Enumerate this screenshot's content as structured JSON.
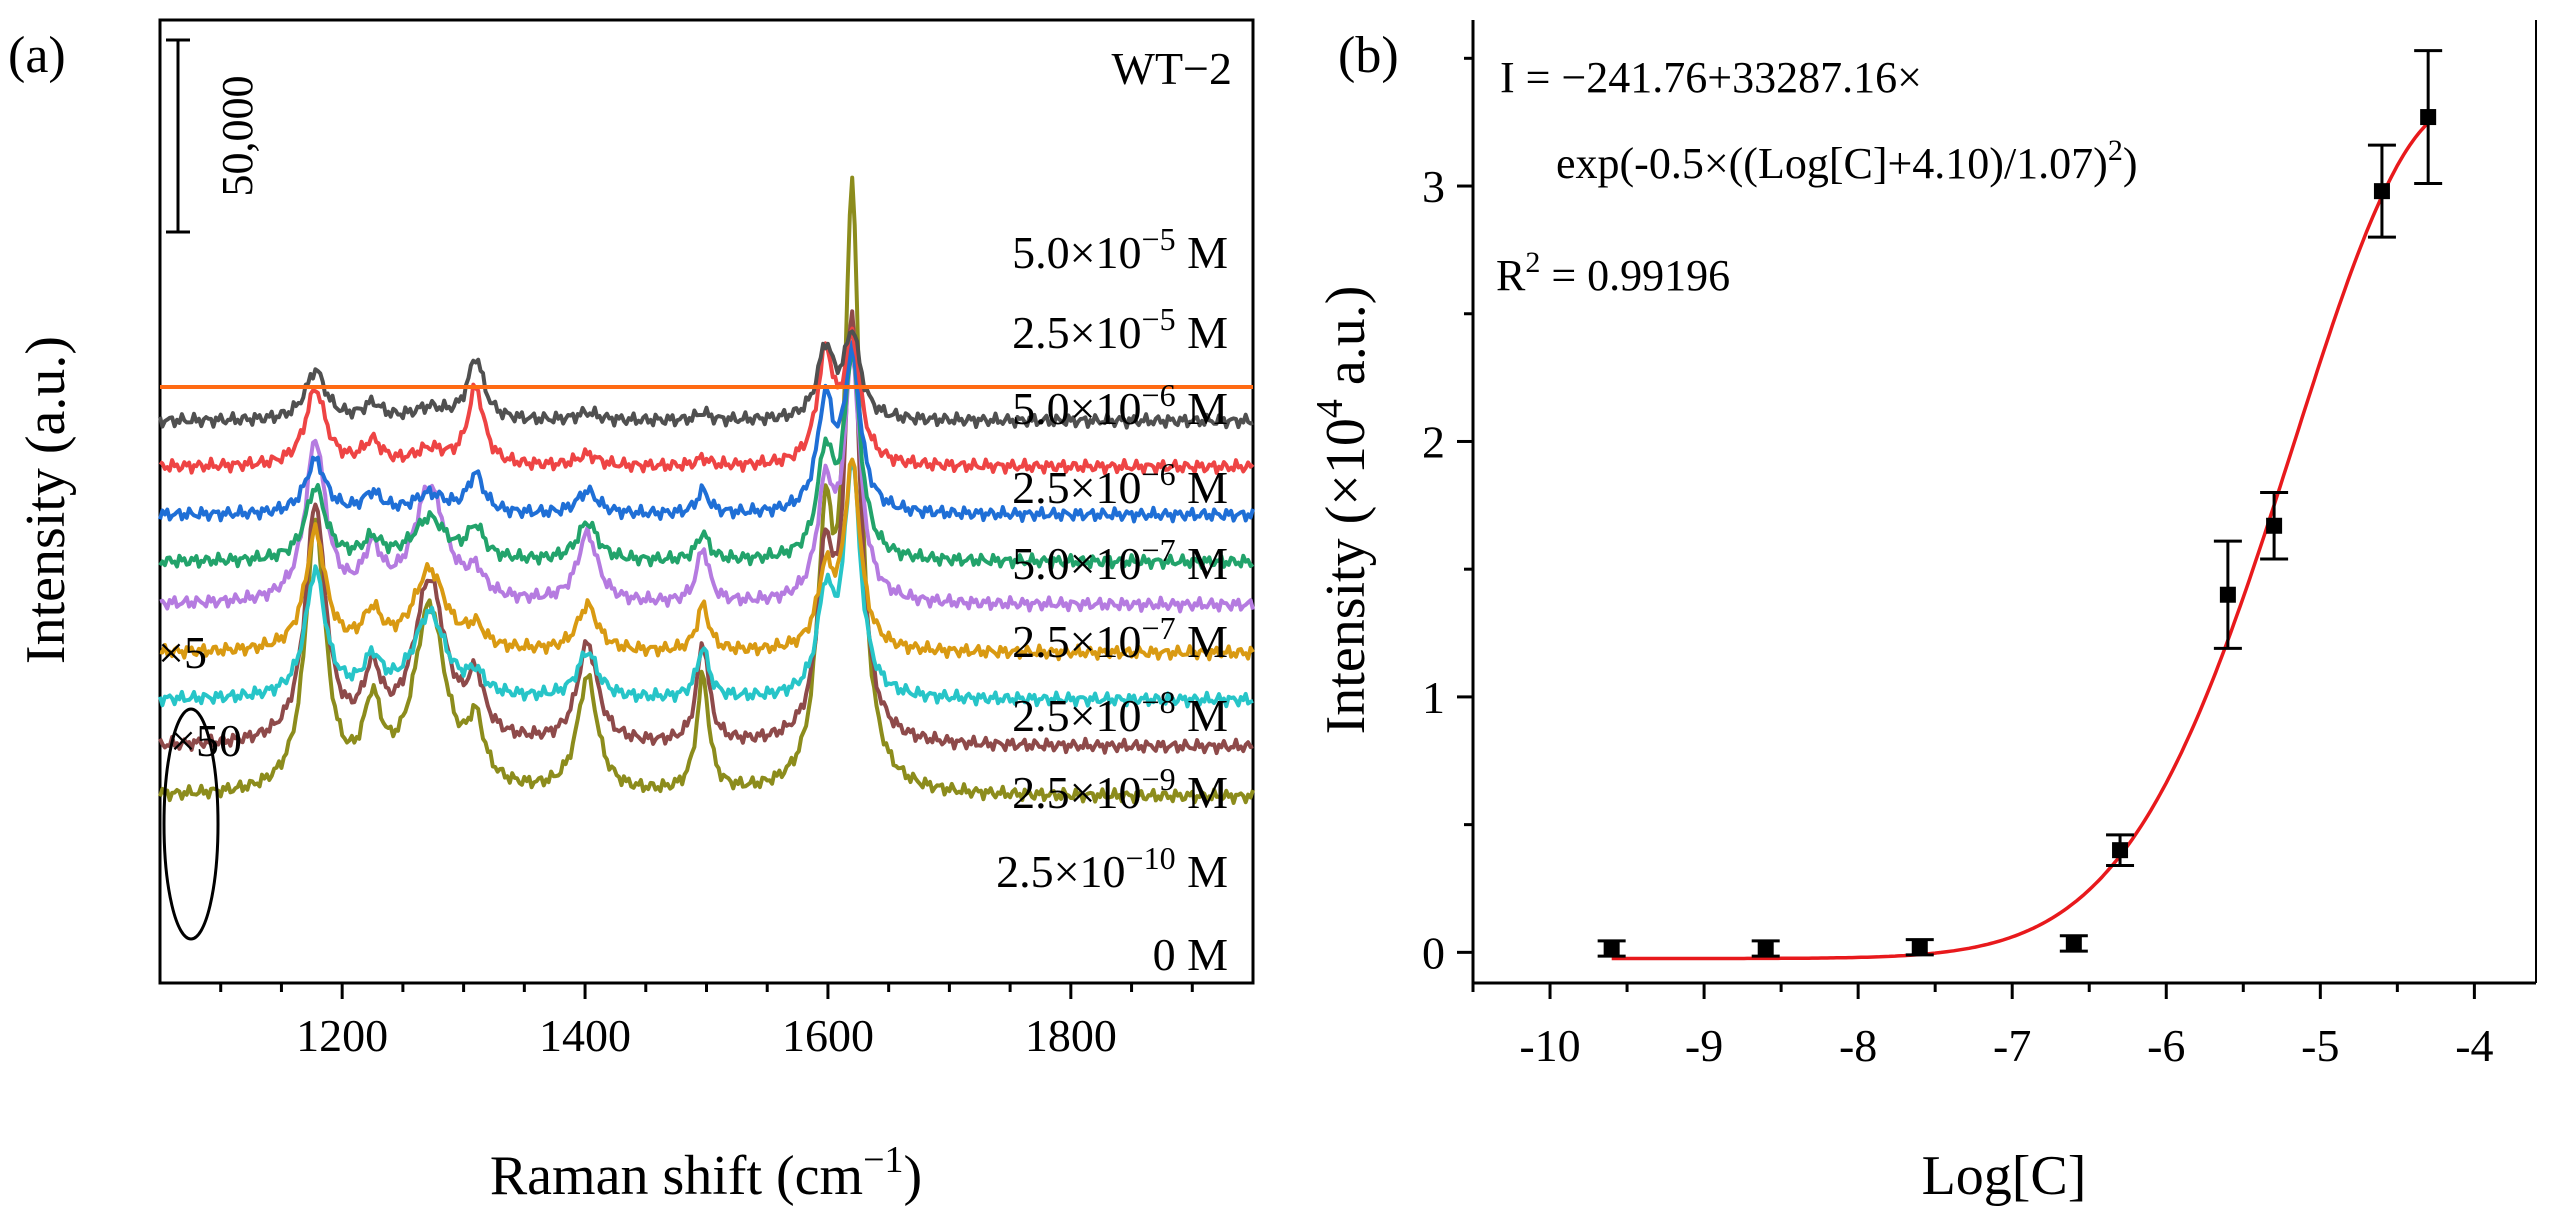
{
  "chart_data": [
    {
      "panel": "(a)",
      "type": "line",
      "title": "",
      "sample_label": "WT−2",
      "xlabel": "Raman shift (cm",
      "xlabel_sup": "−1",
      "xlabel_end": ")",
      "ylabel": "Intensity (a.u.)",
      "xlim": [
        1050,
        1950
      ],
      "xticks": [
        "1200",
        "1400",
        "1600",
        "1800"
      ],
      "xtick_values": [
        1200,
        1400,
        1600,
        1800
      ],
      "scale_bar_label": "50,000",
      "scale_bar_value": 50000,
      "annotations": [
        "×5",
        "×50"
      ],
      "peaks_cm1": [
        1178,
        1225,
        1272,
        1310,
        1402,
        1497,
        1598,
        1620
      ],
      "series": [
        {
          "name": "5.0×10⁻⁵ M",
          "mantissa": "5.0×10",
          "exponent": "−5",
          "unit": "M",
          "color": "#8c8c1c",
          "baseline": 40000,
          "peak_heights": [
            70000,
            20000,
            48000,
            15000,
            30000,
            30000,
            62000,
            152000
          ]
        },
        {
          "name": "2.5×10⁻⁵ M",
          "mantissa": "2.5×10",
          "exponent": "−5",
          "unit": "M",
          "color": "#8e4a4a",
          "baseline": 34000,
          "peak_heights": [
            62000,
            16000,
            42000,
            14000,
            26000,
            26000,
            44000,
            108000
          ]
        },
        {
          "name": "5.0×10⁻⁶ M",
          "mantissa": "5.0×10",
          "exponent": "−6",
          "unit": "M",
          "color": "#27c5c8",
          "baseline": 40000,
          "peak_heights": [
            33000,
            9000,
            22000,
            5000,
            12000,
            13000,
            25000,
            60000
          ]
        },
        {
          "name": "2.5×10⁻⁶ M",
          "mantissa": "2.5×10",
          "exponent": "−6",
          "unit": "M",
          "color": "#d99a12",
          "baseline": 35000,
          "peak_heights": [
            31000,
            9000,
            21000,
            5000,
            12000,
            12000,
            19000,
            48000
          ]
        },
        {
          "name": "5.0×10⁻⁷ M",
          "mantissa": "5.0×10",
          "exponent": "−7",
          "unit": "M",
          "color": "#b57be0",
          "baseline": 30000,
          "peak_heights": [
            42000,
            12000,
            30000,
            6000,
            18000,
            14000,
            28000,
            62000
          ]
        },
        {
          "name": "2.5×10⁻⁷ M",
          "mantissa": "2.5×10",
          "exponent": "−7",
          "unit": "M",
          "color": "#22a36b",
          "baseline": 38000,
          "peak_heights": [
            19000,
            5000,
            11000,
            8000,
            10000,
            7000,
            26000,
            52000
          ]
        },
        {
          "name": "2.5×10⁻⁸ M",
          "mantissa": "2.5×10",
          "exponent": "−8",
          "unit": "M",
          "color": "#1f6fd6",
          "baseline": 33000,
          "peak_heights": [
            14000,
            5000,
            5000,
            10000,
            6000,
            6000,
            28000,
            40000
          ]
        },
        {
          "name": "2.5×10⁻⁹ M",
          "mantissa": "2.5×10",
          "exponent": "−9",
          "unit": "M",
          "color": "#ee4444",
          "baseline": 33000,
          "peak_heights": [
            20000,
            6000,
            4000,
            20000,
            3000,
            2000,
            28000,
            32000
          ]
        },
        {
          "name": "2.5×10⁻¹⁰ M",
          "mantissa": "2.5×10",
          "exponent": "−10",
          "unit": "M",
          "color": "#505050",
          "baseline": 28000,
          "peak_heights": [
            13000,
            4000,
            3000,
            16000,
            2000,
            2000,
            18000,
            22000
          ]
        },
        {
          "name": "0 M",
          "mantissa": "0",
          "exponent": "",
          "unit": "M",
          "color": "#ff6a13",
          "baseline": 0,
          "peak_heights": [
            0,
            0,
            0,
            0,
            0,
            0,
            0,
            0
          ]
        }
      ]
    },
    {
      "panel": "(b)",
      "type": "scatter",
      "title": "",
      "xlabel": "Log[C]",
      "ylabel": "Intensity (×10",
      "ylabel_sup": "4",
      "ylabel_end": " a.u.)",
      "xlim": [
        -10.5,
        -3.6
      ],
      "ylim": [
        -0.12,
        3.65
      ],
      "xticks": [
        "-10",
        "-9",
        "-8",
        "-7",
        "-6",
        "-5",
        "-4"
      ],
      "xtick_values": [
        -10,
        -9,
        -8,
        -7,
        -6,
        -5,
        -4
      ],
      "yticks": [
        "0",
        "1",
        "2",
        "3"
      ],
      "ytick_values": [
        0,
        1,
        2,
        3
      ],
      "points": [
        {
          "x": -9.6,
          "y": 0.015,
          "err": 0.03
        },
        {
          "x": -8.6,
          "y": 0.015,
          "err": 0.03
        },
        {
          "x": -7.6,
          "y": 0.02,
          "err": 0.03
        },
        {
          "x": -6.6,
          "y": 0.035,
          "err": 0.03
        },
        {
          "x": -6.3,
          "y": 0.4,
          "err": 0.06
        },
        {
          "x": -5.6,
          "y": 1.4,
          "err": 0.21
        },
        {
          "x": -5.3,
          "y": 1.67,
          "err": 0.13
        },
        {
          "x": -4.6,
          "y": 2.98,
          "err": 0.18
        },
        {
          "x": -4.3,
          "y": 3.27,
          "err": 0.26
        }
      ],
      "fit": {
        "a": -241.76,
        "b": 33287.16,
        "c": -4.1,
        "w": 1.07,
        "x_range": [
          -9.6,
          -4.3
        ],
        "color": "#e8191c"
      },
      "equation_line1": "I = −241.76+33287.16×",
      "equation_line2": "exp(-0.5×((Log[C]+4.10)/1.07)",
      "equation_line2_sup": "2",
      "equation_line2_end": ")",
      "r2_label": "R",
      "r2_sup": "2",
      "r2_value": " = 0.99196"
    }
  ]
}
